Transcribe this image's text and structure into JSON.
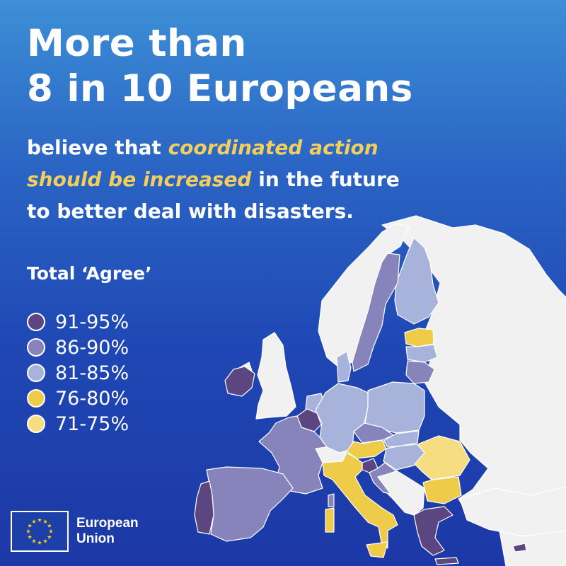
{
  "headline": {
    "line1": "More than",
    "line2": "8 in 10 Europeans"
  },
  "subline": {
    "part1": "believe that ",
    "highlight1": "coordinated action",
    "highlight2": "should be increased",
    "part2": " in the future",
    "part3": "to better deal with disasters."
  },
  "highlight_color": "#f2cf5c",
  "legend": {
    "title": "Total ‘Agree’",
    "items": [
      {
        "label": "91-95%",
        "color": "#5b4681"
      },
      {
        "label": "86-90%",
        "color": "#8784bb"
      },
      {
        "label": "81-85%",
        "color": "#a7b3da"
      },
      {
        "label": "76-80%",
        "color": "#eecb48"
      },
      {
        "label": "71-75%",
        "color": "#f6dd82"
      }
    ]
  },
  "map": {
    "non_eu_color": "#f1f1f1",
    "countries": [
      {
        "name": "Ireland",
        "band": "91-95%"
      },
      {
        "name": "Belgium",
        "band": "91-95%"
      },
      {
        "name": "Slovenia",
        "band": "91-95%"
      },
      {
        "name": "Portugal",
        "band": "91-95%"
      },
      {
        "name": "Greece",
        "band": "91-95%"
      },
      {
        "name": "Sweden",
        "band": "86-90%"
      },
      {
        "name": "Spain",
        "band": "86-90%"
      },
      {
        "name": "France",
        "band": "86-90%"
      },
      {
        "name": "Czechia",
        "band": "86-90%"
      },
      {
        "name": "Lithuania",
        "band": "86-90%"
      },
      {
        "name": "Croatia",
        "band": "86-90%"
      },
      {
        "name": "Finland",
        "band": "81-85%"
      },
      {
        "name": "Denmark",
        "band": "81-85%"
      },
      {
        "name": "Germany",
        "band": "81-85%"
      },
      {
        "name": "Poland",
        "band": "81-85%"
      },
      {
        "name": "Latvia",
        "band": "81-85%"
      },
      {
        "name": "Slovakia",
        "band": "81-85%"
      },
      {
        "name": "Hungary",
        "band": "81-85%"
      },
      {
        "name": "Netherlands",
        "band": "81-85%"
      },
      {
        "name": "Estonia",
        "band": "76-80%"
      },
      {
        "name": "Italy",
        "band": "76-80%"
      },
      {
        "name": "Austria",
        "band": "76-80%"
      },
      {
        "name": "Bulgaria",
        "band": "76-80%"
      },
      {
        "name": "Romania",
        "band": "71-75%"
      }
    ]
  },
  "logo": {
    "line1": "European",
    "line2": "Union"
  }
}
